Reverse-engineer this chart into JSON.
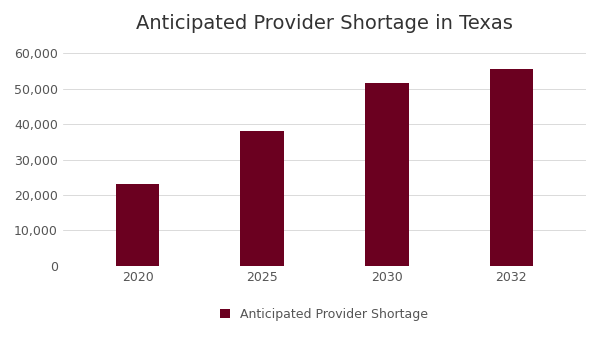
{
  "title": "Anticipated Provider Shortage in Texas",
  "categories": [
    "2020",
    "2025",
    "2030",
    "2032"
  ],
  "values": [
    23000,
    38000,
    51500,
    55500
  ],
  "bar_color": "#6B0020",
  "legend_label": "Anticipated Provider Shortage",
  "ylim": [
    0,
    63000
  ],
  "yticks": [
    0,
    10000,
    20000,
    30000,
    40000,
    50000,
    60000
  ],
  "background_color": "#ffffff",
  "title_fontsize": 14,
  "tick_fontsize": 9,
  "legend_fontsize": 9,
  "bar_width": 0.35
}
